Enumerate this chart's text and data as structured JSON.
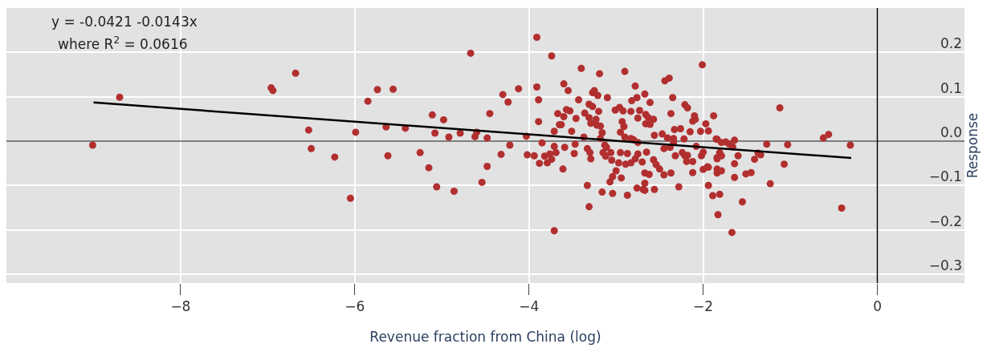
{
  "chart_data": {
    "type": "scatter",
    "xlabel": "Revenue fraction from China (log)",
    "ylabel": "Response",
    "annotations": [
      "y = -0.0421 -0.0143x",
      "where R$^{2}$ = 0.0616"
    ],
    "xlim": [
      -10,
      1
    ],
    "xticks": [
      {
        "value": -8,
        "label": "−8"
      },
      {
        "value": -6,
        "label": "−6"
      },
      {
        "value": -4,
        "label": "−4"
      },
      {
        "value": -2,
        "label": "−2"
      },
      0
    ],
    "ylim": [
      -0.32,
      0.3
    ],
    "yticks": [
      {
        "value": -0.3,
        "label": "−0.3"
      },
      {
        "value": -0.2,
        "label": "−0.2"
      },
      {
        "value": -0.1,
        "label": "−0.1"
      },
      {
        "value": 0,
        "label": "0.0"
      },
      0.1,
      0.2
    ],
    "grid": true,
    "line_style": "solid",
    "ref_lines": [
      {
        "axis": "y",
        "value": 0,
        "color": "#555555"
      },
      {
        "axis": "x",
        "value": 0,
        "color": "#000000"
      }
    ],
    "series": [
      {
        "marker": "circle",
        "color": "#b22f2f",
        "x": [
          -8.7,
          -9.01,
          -6.68,
          -6.96,
          -6.94,
          -6.53,
          -6.5,
          -6.23,
          -6.05,
          -5.99,
          -5.85,
          -5.74,
          -5.56,
          -5.64,
          -5.62,
          -5.42,
          -5.25,
          -5.15,
          -5.11,
          -5.08,
          -5.06,
          -4.98,
          -4.92,
          -4.86,
          -4.79,
          -4.67,
          -4.62,
          -4.6,
          -4.54,
          -4.48,
          -4.48,
          -4.45,
          -4.32,
          -4.3,
          -4.24,
          -4.22,
          -4.12,
          -4.03,
          -4.02,
          -3.94,
          -3.91,
          -3.91,
          -3.89,
          -3.89,
          -3.88,
          -3.85,
          -3.82,
          -3.79,
          -3.76,
          -3.74,
          -3.74,
          -3.71,
          -3.71,
          -3.69,
          -3.71,
          -3.67,
          -3.65,
          -3.4,
          -3.19,
          -2.9,
          -2.01,
          -2.44,
          -2.39,
          -3.6,
          -3.55,
          -3.43,
          -3.25,
          -3.27,
          -3.21,
          -3.1,
          -2.78,
          -2.67,
          -2.76,
          -2.82,
          -2.61,
          -2.35,
          -2.21,
          -2.18,
          -2.37,
          -1.88,
          -3.57,
          -3.53,
          -3.31,
          -3.27,
          -3.6,
          -3.63,
          -3.46,
          -3.36,
          -3.31,
          -3.29,
          -3.23,
          -3.22,
          -3.18,
          -3.2,
          -3.01,
          -2.96,
          -2.92,
          -2.93,
          -2.91,
          -2.83,
          -2.73,
          -2.75,
          -2.66,
          -2.63,
          -2.57,
          -2.61,
          -2.66,
          -3.51,
          -3.37,
          -3.16,
          -3.18,
          -2.95,
          -2.9,
          -2.83,
          -2.8,
          -2.75,
          -2.56,
          -2.47,
          -2.41,
          -2.34,
          -2.26,
          -2.33,
          -2.15,
          -2.03,
          -2.22,
          -3.61,
          -3.59,
          -3.48,
          -3.47,
          -3.33,
          -3.3,
          -3.29,
          -3.33,
          -3.31,
          -3.16,
          -3.13,
          -3.11,
          -3.15,
          -3.06,
          -3.12,
          -3.05,
          -3.04,
          -3.07,
          -3.04,
          -3.0,
          -2.94,
          -2.97,
          -2.95,
          -2.87,
          -2.89,
          -2.83,
          -2.78,
          -2.87,
          -2.76,
          -2.69,
          -2.67,
          -2.67,
          -2.56,
          -2.7,
          -2.75,
          -2.65,
          -2.67,
          -2.62,
          -2.57,
          -2.54,
          -2.5,
          -2.45,
          -2.37,
          -2.45,
          -2.38,
          -2.34,
          -2.32,
          -2.28,
          -2.24,
          -2.21,
          -2.18,
          -2.19,
          -2.12,
          -2.12,
          -2.08,
          -2.02,
          -2.0,
          -1.95,
          -2.0,
          -1.94,
          -1.89,
          -1.83,
          -1.81,
          -1.85,
          -1.84,
          -1.81,
          -1.97,
          -1.94,
          -2.1,
          -2.12,
          -2.09,
          -1.84,
          -1.79,
          -1.74,
          -1.7,
          -1.66,
          -1.64,
          -1.79,
          -1.84,
          -1.94,
          -1.84,
          -1.84,
          -1.79,
          -1.67,
          -1.64,
          -1.64,
          -1.6,
          -1.55,
          -1.51,
          -1.45,
          -1.41,
          -1.37,
          -1.34,
          -1.27,
          -1.23,
          -1.12,
          -1.07,
          -1.03,
          -0.62,
          -0.56,
          -0.41,
          -0.31
        ],
        "values": [
          0.099,
          -0.009,
          0.153,
          0.12,
          0.114,
          0.025,
          -0.017,
          -0.036,
          -0.129,
          0.02,
          0.09,
          0.116,
          0.117,
          0.032,
          -0.033,
          0.029,
          -0.026,
          -0.06,
          0.059,
          0.018,
          -0.103,
          0.048,
          0.009,
          -0.113,
          0.018,
          0.198,
          0.01,
          0.02,
          -0.093,
          0.007,
          -0.057,
          0.062,
          -0.03,
          0.105,
          0.088,
          -0.009,
          0.118,
          0.011,
          -0.031,
          -0.033,
          0.234,
          0.122,
          0.093,
          0.044,
          -0.05,
          -0.004,
          -0.034,
          -0.049,
          -0.029,
          -0.041,
          0.192,
          -0.202,
          -0.012,
          -0.026,
          0.022,
          0.062,
          0.037,
          0.164,
          0.152,
          0.157,
          0.172,
          0.136,
          0.142,
          0.129,
          0.114,
          0.093,
          0.114,
          0.109,
          0.103,
          0.098,
          0.124,
          0.106,
          0.098,
          0.091,
          0.087,
          0.098,
          0.082,
          0.075,
          0.062,
          0.057,
          0.071,
          0.068,
          0.083,
          0.078,
          0.055,
          0.037,
          0.051,
          0.063,
          0.053,
          0.04,
          0.049,
          0.036,
          0.034,
          0.067,
          0.07,
          0.076,
          0.068,
          0.044,
          0.033,
          0.067,
          0.069,
          0.052,
          0.06,
          0.053,
          0.049,
          0.038,
          0.039,
          0.022,
          0.009,
          0.019,
          0.006,
          0.02,
          0.009,
          0.006,
          0.003,
          -0.003,
          0.013,
          0.016,
          0.007,
          0.006,
          0.028,
          0.026,
          0.021,
          0.022,
          0.005,
          -0.063,
          -0.014,
          -0.028,
          -0.007,
          -0.017,
          -0.026,
          -0.04,
          -0.1,
          -0.148,
          -0.115,
          -0.009,
          -0.014,
          -0.026,
          -0.026,
          -0.034,
          -0.043,
          -0.118,
          -0.092,
          -0.08,
          -0.067,
          -0.083,
          -0.049,
          -0.026,
          -0.028,
          -0.052,
          -0.049,
          -0.04,
          -0.122,
          -0.106,
          -0.109,
          -0.095,
          -0.111,
          -0.109,
          -0.047,
          -0.029,
          -0.025,
          -0.072,
          -0.075,
          -0.042,
          -0.053,
          -0.063,
          -0.076,
          -0.072,
          -0.017,
          -0.014,
          -0.003,
          -0.033,
          -0.103,
          -0.026,
          -0.033,
          -0.032,
          -0.046,
          -0.046,
          -0.071,
          -0.012,
          -0.033,
          -0.025,
          -0.058,
          -0.064,
          -0.1,
          -0.123,
          -0.166,
          -0.12,
          0.005,
          -0.037,
          -0.026,
          0.039,
          0.023,
          0.057,
          0.045,
          0.049,
          0.004,
          -0.003,
          -0.002,
          -0.007,
          -0.013,
          0.002,
          -0.033,
          -0.04,
          -0.059,
          -0.063,
          -0.072,
          -0.067,
          -0.206,
          -0.051,
          -0.082,
          -0.033,
          -0.137,
          -0.074,
          -0.071,
          -0.041,
          -0.027,
          -0.031,
          -0.007,
          -0.096,
          0.075,
          -0.052,
          -0.008,
          0.007,
          0.015,
          -0.151,
          -0.009
        ]
      },
      {
        "type": "line",
        "color": "#000000",
        "x": [
          -9,
          -0.3
        ],
        "values": [
          0.087,
          -0.038
        ]
      }
    ]
  }
}
